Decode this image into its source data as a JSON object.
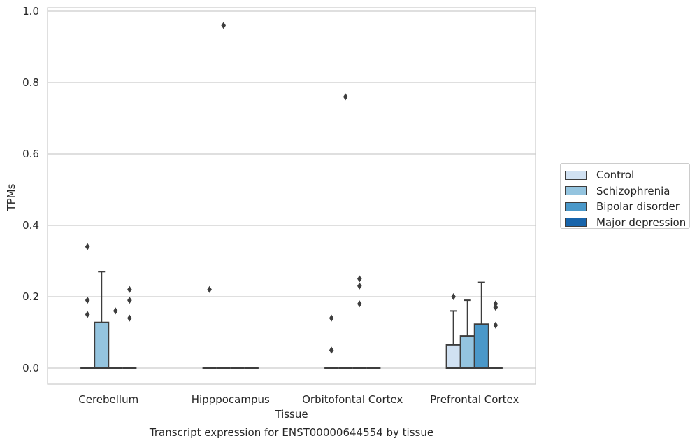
{
  "chart_data": {
    "type": "box",
    "title": "Transcript expression for ENST00000644554 by tissue",
    "xlabel": "Tissue",
    "ylabel": "TPMs",
    "ylim": [
      -0.045,
      1.01
    ],
    "yticks": [
      0.0,
      0.2,
      0.4,
      0.6,
      0.8,
      1.0
    ],
    "ytick_labels": [
      "0.0",
      "0.2",
      "0.4",
      "0.6",
      "0.8",
      "1.0"
    ],
    "grid": true,
    "legend_position": "right",
    "categories": [
      "Cerebellum",
      "Hipppocampus",
      "Orbitofontal Cortex",
      "Prefrontal Cortex"
    ],
    "series": [
      {
        "name": "Control",
        "color": "#d0e1f2",
        "boxes": [
          {
            "q1": 0,
            "median": 0,
            "q3": 0,
            "whisker_low": 0,
            "whisker_high": 0,
            "outliers": [
              0.34,
              0.19,
              0.15
            ]
          },
          {
            "q1": 0,
            "median": 0,
            "q3": 0,
            "whisker_low": 0,
            "whisker_high": 0,
            "outliers": [
              0.22
            ]
          },
          {
            "q1": 0,
            "median": 0,
            "q3": 0,
            "whisker_low": 0,
            "whisker_high": 0,
            "outliers": [
              0.14,
              0.05
            ]
          },
          {
            "q1": 0,
            "median": 0,
            "q3": 0.065,
            "whisker_low": 0,
            "whisker_high": 0.16,
            "outliers": [
              0.2
            ]
          }
        ]
      },
      {
        "name": "Schizophrenia",
        "color": "#94c4df",
        "boxes": [
          {
            "q1": 0,
            "median": 0,
            "q3": 0.128,
            "whisker_low": 0,
            "whisker_high": 0.27,
            "outliers": []
          },
          {
            "q1": 0,
            "median": 0,
            "q3": 0,
            "whisker_low": 0,
            "whisker_high": 0,
            "outliers": [
              0.96
            ]
          },
          {
            "q1": 0,
            "median": 0,
            "q3": 0,
            "whisker_low": 0,
            "whisker_high": 0,
            "outliers": [
              0.76
            ]
          },
          {
            "q1": 0,
            "median": 0,
            "q3": 0.09,
            "whisker_low": 0,
            "whisker_high": 0.19,
            "outliers": []
          }
        ]
      },
      {
        "name": "Bipolar disorder",
        "color": "#4a98c9",
        "boxes": [
          {
            "q1": 0,
            "median": 0,
            "q3": 0,
            "whisker_low": 0,
            "whisker_high": 0,
            "outliers": [
              0.16
            ]
          },
          {
            "q1": 0,
            "median": 0,
            "q3": 0,
            "whisker_low": 0,
            "whisker_high": 0,
            "outliers": []
          },
          {
            "q1": 0,
            "median": 0,
            "q3": 0,
            "whisker_low": 0,
            "whisker_high": 0,
            "outliers": [
              0.25,
              0.23,
              0.18
            ]
          },
          {
            "q1": 0,
            "median": 0,
            "q3": 0.123,
            "whisker_low": 0,
            "whisker_high": 0.24,
            "outliers": []
          }
        ]
      },
      {
        "name": "Major depression",
        "color": "#1764ab",
        "boxes": [
          {
            "q1": 0,
            "median": 0,
            "q3": 0,
            "whisker_low": 0,
            "whisker_high": 0,
            "outliers": [
              0.22,
              0.19,
              0.14
            ]
          },
          {
            "q1": 0,
            "median": 0,
            "q3": 0,
            "whisker_low": 0,
            "whisker_high": 0,
            "outliers": []
          },
          {
            "q1": 0,
            "median": 0,
            "q3": 0,
            "whisker_low": 0,
            "whisker_high": 0,
            "outliers": []
          },
          {
            "q1": 0,
            "median": 0,
            "q3": 0,
            "whisker_low": 0,
            "whisker_high": 0,
            "outliers": [
              0.18,
              0.17,
              0.12
            ]
          }
        ]
      }
    ]
  }
}
